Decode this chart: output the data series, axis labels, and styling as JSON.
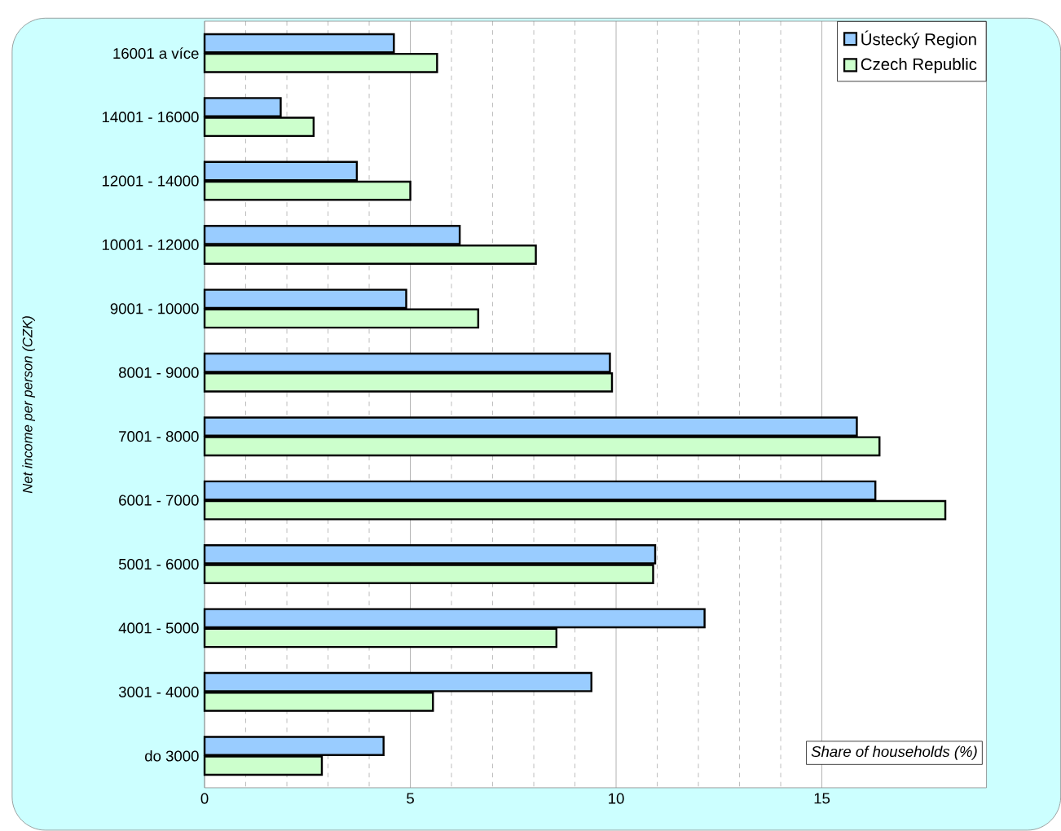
{
  "chart_data": {
    "type": "bar",
    "orientation": "horizontal",
    "categories": [
      "16001 a více",
      "14001 - 16000",
      "12001 - 14000",
      "10001 - 12000",
      "9001 - 10000",
      "8001 - 9000",
      "7001 - 8000",
      "6001 - 7000",
      "5001 - 6000",
      "4001 - 5000",
      "3001 - 4000",
      "do 3000"
    ],
    "series": [
      {
        "name": "Ústecký Region",
        "color": "#99ccff",
        "values": [
          4.6,
          1.85,
          3.7,
          6.2,
          4.9,
          9.85,
          15.85,
          16.3,
          10.95,
          12.15,
          9.4,
          4.35
        ]
      },
      {
        "name": "Czech Republic",
        "color": "#ccffcc",
        "values": [
          5.65,
          2.65,
          5.0,
          8.05,
          6.65,
          9.9,
          16.4,
          18.0,
          10.9,
          8.55,
          5.55,
          2.85
        ]
      }
    ],
    "xlabel": "Share of households (%)",
    "ylabel": "Net income per person (CZK)",
    "xlim": [
      0,
      19
    ],
    "xticks": [
      0,
      5,
      10,
      15
    ],
    "grid": "x",
    "legend": "top right"
  }
}
